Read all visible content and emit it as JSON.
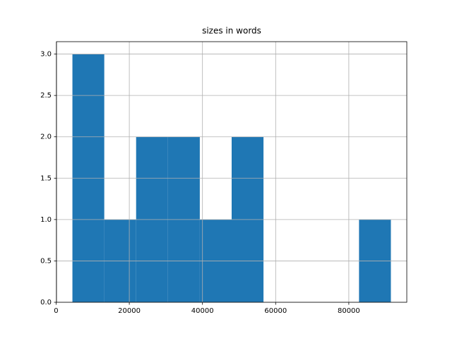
{
  "chart_data": {
    "type": "histogram",
    "title": "sizes in words",
    "bins": [
      4450,
      13155,
      21860,
      30565,
      39270,
      47975,
      56680,
      65385,
      74090,
      82795,
      91500
    ],
    "values": [
      3,
      1,
      2,
      2,
      1,
      2,
      0,
      0,
      0,
      1
    ],
    "color": "#1f77b4",
    "xlim": [
      98,
      95852
    ],
    "xticks": [
      0,
      20000,
      40000,
      60000,
      80000
    ],
    "ylim": [
      0,
      3.15
    ],
    "yticks": [
      {
        "value": 0,
        "label": "0.0"
      },
      0.5,
      {
        "value": 1,
        "label": "1.0"
      },
      1.5,
      {
        "value": 2,
        "label": "2.0"
      },
      2.5,
      {
        "value": 3,
        "label": "3.0"
      }
    ],
    "grid": true
  }
}
